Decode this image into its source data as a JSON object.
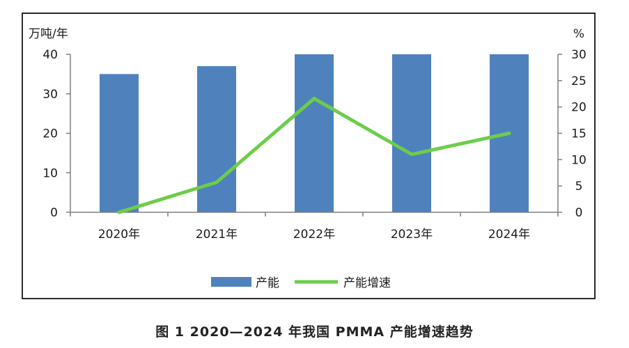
{
  "chart_data": {
    "type": "bar+line",
    "categories": [
      "2020年",
      "2021年",
      "2022年",
      "2023年",
      "2024年"
    ],
    "series": [
      {
        "name": "产能",
        "type": "bar",
        "axis": "left",
        "values": [
          35,
          37,
          40,
          40,
          40
        ],
        "color": "#4f81bd"
      },
      {
        "name": "产能增速",
        "type": "line",
        "axis": "right",
        "values": [
          0,
          5.7,
          21.6,
          11,
          15
        ],
        "color": "#6ccd4a"
      }
    ],
    "y_left": {
      "unit": "万吨/年",
      "ylim": [
        0,
        40
      ],
      "ticks": [
        0,
        10,
        20,
        30,
        40
      ]
    },
    "y_right": {
      "unit": "%",
      "ylim": [
        0,
        30
      ],
      "ticks": [
        0,
        5,
        10,
        15,
        20,
        25,
        30
      ]
    },
    "grid": false,
    "legend": "bottom-center"
  },
  "caption": "图 1  2020—2024 年我国 PMMA 产能增速趋势"
}
